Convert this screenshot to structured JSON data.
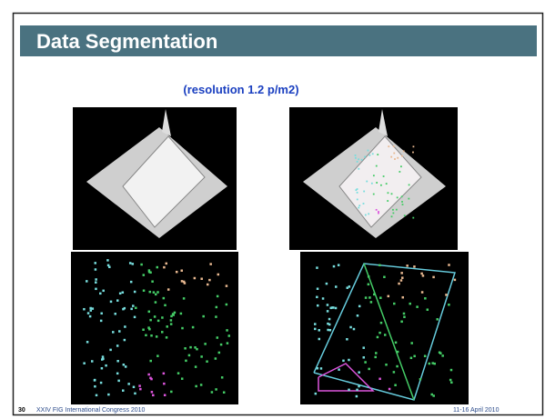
{
  "header": {
    "title": "Data Segmentation",
    "subtitle": "(resolution 1.2 p/m2)"
  },
  "footer": {
    "page": "30",
    "event": "XXIV FIG International Congress 2010",
    "date": "11-16 April 2010"
  }
}
